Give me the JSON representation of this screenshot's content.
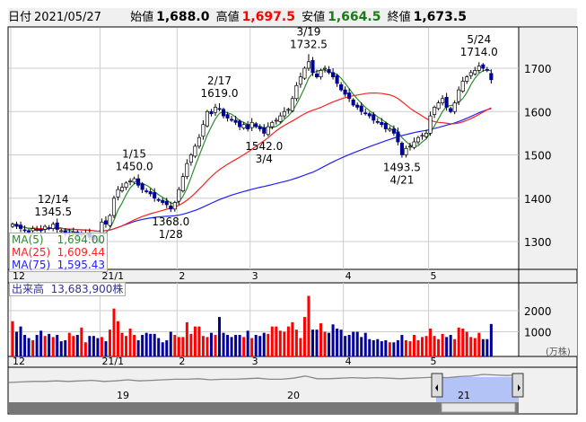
{
  "header": {
    "date_label": "日付",
    "date": "2021/05/27",
    "open_label": "始値",
    "open": "1,688.0",
    "high_label": "高値",
    "high": "1,697.5",
    "low_label": "安値",
    "low": "1,664.5",
    "close_label": "終値",
    "close": "1,673.5"
  },
  "colors": {
    "up": "#ff0000",
    "down": "#000099",
    "ma5": "#2e8b2e",
    "ma25": "#ff2020",
    "ma75": "#2020ff",
    "grid": "#cccccc",
    "panel": "#f0f0f0",
    "nav_fill": "#b3c3f5"
  },
  "legend": {
    "ma5_label": "MA(5)",
    "ma5": "1,694.00",
    "ma25_label": "MA(25)",
    "ma25": "1,609.44",
    "ma75_label": "MA(75)",
    "ma75": "1,595.43"
  },
  "volume": {
    "label": "出来高",
    "value": "13,683,900株",
    "unit": "(万株)"
  },
  "chart_data": {
    "type": "candlestick",
    "price_ticks": [
      1300,
      1400,
      1500,
      1600,
      1700
    ],
    "ylim": [
      1240,
      1790
    ],
    "volume_ticks": [
      1000,
      2000
    ],
    "month_ticks": [
      {
        "label": "12",
        "index": 0
      },
      {
        "label": "21/1",
        "index": 22
      },
      {
        "label": "2",
        "index": 41
      },
      {
        "label": "3",
        "index": 59
      },
      {
        "label": "4",
        "index": 82
      },
      {
        "label": "5",
        "index": 103
      }
    ],
    "closes": [
      1340,
      1335,
      1330,
      1325,
      1322,
      1330,
      1328,
      1325,
      1335,
      1330,
      1340,
      1328,
      1325,
      1318,
      1320,
      1322,
      1315,
      1318,
      1320,
      1310,
      1305,
      1300,
      1345,
      1340,
      1360,
      1400,
      1420,
      1425,
      1435,
      1440,
      1445,
      1430,
      1420,
      1415,
      1410,
      1400,
      1395,
      1390,
      1385,
      1375,
      1390,
      1420,
      1450,
      1480,
      1500,
      1520,
      1540,
      1570,
      1600,
      1595,
      1610,
      1605,
      1590,
      1585,
      1580,
      1575,
      1565,
      1570,
      1560,
      1575,
      1565,
      1560,
      1550,
      1565,
      1575,
      1580,
      1590,
      1600,
      1605,
      1630,
      1660,
      1680,
      1700,
      1715,
      1690,
      1680,
      1695,
      1700,
      1690,
      1680,
      1665,
      1650,
      1640,
      1630,
      1615,
      1610,
      1600,
      1595,
      1590,
      1580,
      1575,
      1570,
      1560,
      1560,
      1550,
      1530,
      1500,
      1515,
      1520,
      1530,
      1540,
      1545,
      1550,
      1590,
      1610,
      1620,
      1630,
      1610,
      1600,
      1620,
      1650,
      1670,
      1680,
      1690,
      1695,
      1705,
      1700,
      1695,
      1673.5
    ],
    "last_candle": {
      "open": 1688.0,
      "high": 1697.5,
      "low": 1664.5,
      "close": 1673.5
    },
    "volumes": [
      1500,
      1000,
      1250,
      850,
      700,
      600,
      850,
      1050,
      800,
      900,
      750,
      850,
      550,
      600,
      950,
      800,
      850,
      1200,
      500,
      800,
      800,
      700,
      750,
      550,
      1100,
      2100,
      1500,
      950,
      800,
      1150,
      850,
      600,
      850,
      950,
      900,
      900,
      700,
      500,
      600,
      1000,
      850,
      750,
      750,
      1450,
      900,
      1250,
      1250,
      800,
      750,
      950,
      850,
      1700,
      950,
      850,
      750,
      850,
      850,
      750,
      1050,
      700,
      850,
      800,
      950,
      900,
      1250,
      1250,
      1050,
      1000,
      1250,
      1450,
      1100,
      700,
      1700,
      2700,
      1100,
      1100,
      1400,
      1000,
      950,
      1350,
      1150,
      1100,
      800,
      850,
      1000,
      1000,
      750,
      950,
      650,
      600,
      650,
      550,
      600,
      500,
      500,
      600,
      850,
      600,
      550,
      850,
      600,
      750,
      800,
      1150,
      800,
      650,
      900,
      750,
      850,
      650,
      1200,
      1150,
      1000,
      750,
      700,
      950,
      650,
      650,
      1368
    ],
    "annotations": [
      {
        "date": "12/14",
        "value": "1345.5",
        "index": 10,
        "side": "high"
      },
      {
        "date": "1/15",
        "value": "1450.0",
        "index": 30,
        "side": "high"
      },
      {
        "date": "1/28",
        "value": "1368.0",
        "index": 39,
        "side": "low"
      },
      {
        "date": "2/17",
        "value": "1619.0",
        "index": 51,
        "side": "high"
      },
      {
        "date": "3/4",
        "value": "1542.0",
        "index": 62,
        "side": "low"
      },
      {
        "date": "3/19",
        "value": "1732.5",
        "index": 73,
        "side": "high"
      },
      {
        "date": "4/21",
        "value": "1493.5",
        "index": 96,
        "side": "low"
      },
      {
        "date": "5/24",
        "value": "1714.0",
        "index": 115,
        "side": "high"
      }
    ],
    "navigator": {
      "year_labels": [
        "19",
        "20",
        "21"
      ],
      "series": [
        60,
        59,
        58,
        58,
        57,
        58,
        57,
        56,
        58,
        57,
        55,
        57,
        56,
        55,
        54,
        54,
        53,
        55,
        54,
        54,
        53,
        52,
        54,
        54,
        52,
        48,
        53,
        53,
        52,
        51,
        52,
        51,
        52,
        53,
        52,
        51,
        50,
        51,
        49,
        48,
        45,
        46,
        47,
        46
      ]
    }
  }
}
